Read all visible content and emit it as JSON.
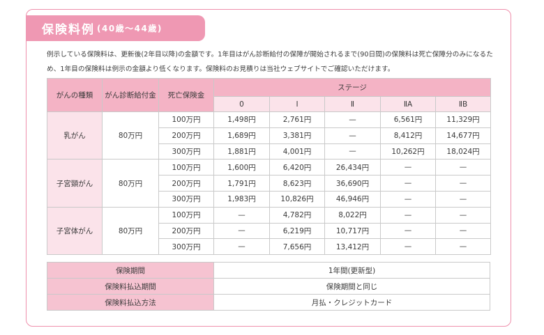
{
  "title": {
    "main": "保険料例",
    "sub": "(40歳～44歳)"
  },
  "description": "例示している保険料は、更新後(2年目以降)の金額です。1年目はがん診断給付の保障が開始されるまで(90日間)の保険料は死亡保障分のみになるため、1年目の保険料は例示の金額より低くなります。保険料のお見積りは当社ウェブサイトでご確認いただけます。",
  "table": {
    "headers": {
      "type": "がんの種類",
      "benefit": "がん診断給付金",
      "death": "死亡保険金",
      "stage": "ステージ",
      "stages": [
        "0",
        "Ⅰ",
        "Ⅱ",
        "ⅡA",
        "ⅡB"
      ]
    },
    "groups": [
      {
        "type": "乳がん",
        "benefit": "80万円",
        "rows": [
          {
            "death": "100万円",
            "values": [
              "1,498円",
              "2,761円",
              "—",
              "6,561円",
              "11,329円"
            ]
          },
          {
            "death": "200万円",
            "values": [
              "1,689円",
              "3,381円",
              "—",
              "8,412円",
              "14,677円"
            ]
          },
          {
            "death": "300万円",
            "values": [
              "1,881円",
              "4,001円",
              "—",
              "10,262円",
              "18,024円"
            ]
          }
        ]
      },
      {
        "type": "子宮頸がん",
        "benefit": "80万円",
        "rows": [
          {
            "death": "100万円",
            "values": [
              "1,600円",
              "6,420円",
              "26,434円",
              "—",
              "—"
            ]
          },
          {
            "death": "200万円",
            "values": [
              "1,791円",
              "8,623円",
              "36,690円",
              "—",
              "—"
            ]
          },
          {
            "death": "300万円",
            "values": [
              "1,983円",
              "10,826円",
              "46,946円",
              "—",
              "—"
            ]
          }
        ]
      },
      {
        "type": "子宮体がん",
        "benefit": "80万円",
        "rows": [
          {
            "death": "100万円",
            "values": [
              "—",
              "4,782円",
              "8,022円",
              "—",
              "—"
            ]
          },
          {
            "death": "200万円",
            "values": [
              "—",
              "6,219円",
              "10,717円",
              "—",
              "—"
            ]
          },
          {
            "death": "300万円",
            "values": [
              "—",
              "7,656円",
              "13,412円",
              "—",
              "—"
            ]
          }
        ]
      }
    ]
  },
  "info": [
    {
      "label": "保険期間",
      "value": "1年間(更新型)"
    },
    {
      "label": "保険料払込期間",
      "value": "保険期間と同じ"
    },
    {
      "label": "保険料払込方法",
      "value": "月払・クレジットカード"
    }
  ],
  "colors": {
    "accent": "#ef98b3",
    "border": "#ef8fac",
    "header": "#f4b3c5",
    "light": "#fbe3ea"
  }
}
